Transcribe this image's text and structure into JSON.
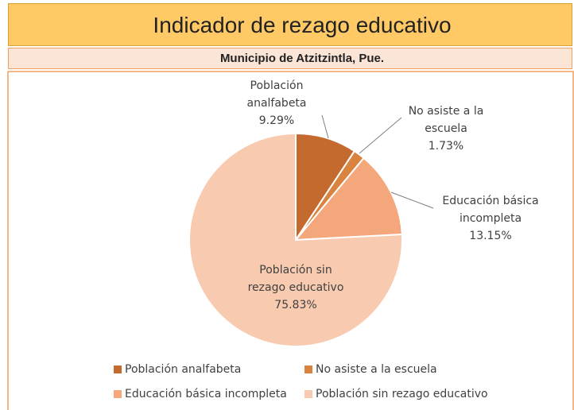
{
  "chart_data": {
    "type": "pie",
    "title": "Indicador de rezago educativo",
    "subtitle": "Municipio de Atzitzintla, Pue.",
    "categories": [
      "Población analfabeta",
      "No asiste a la escuela",
      "Educación básica incompleta",
      "Población sin rezago educativo"
    ],
    "values": [
      9.29,
      1.73,
      13.15,
      75.83
    ],
    "value_labels": [
      "9.29%",
      "1.73%",
      "13.15%",
      "75.83%"
    ],
    "colors": [
      "#c46a2e",
      "#d9833f",
      "#f4a77b",
      "#f8cbb0"
    ],
    "legend": "bottom"
  }
}
